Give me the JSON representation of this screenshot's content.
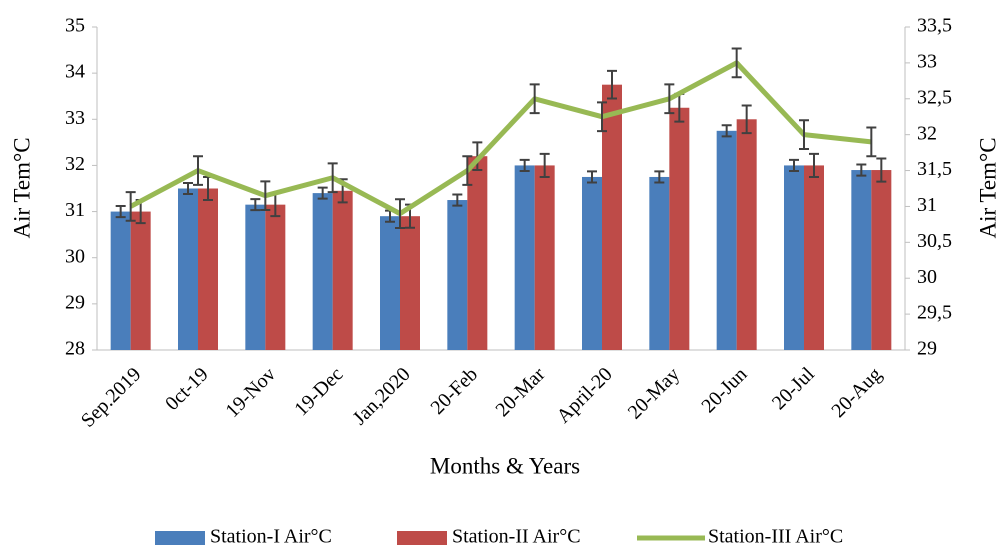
{
  "chart_data": {
    "type": "bar",
    "x_label": "Months & Years",
    "y_label": "Air Tem°C",
    "y2_label": "Air Tem°C",
    "categories": [
      "Sep.2019",
      "0ct-19",
      "19-Nov",
      "19-Dec",
      "Jan,2020",
      "20-Feb",
      "20-Mar",
      "April-20",
      "20-May",
      "20-Jun",
      "20-Jul",
      "20-Aug"
    ],
    "series": [
      {
        "name": "Station-I Air°C",
        "color": "#4a7ebb",
        "type": "bar",
        "values": [
          31.0,
          31.5,
          31.15,
          31.4,
          30.9,
          31.25,
          32.0,
          31.75,
          31.75,
          32.75,
          32.0,
          31.9
        ],
        "errors": [
          0.12,
          0.12,
          0.12,
          0.12,
          0.12,
          0.12,
          0.12,
          0.12,
          0.12,
          0.12,
          0.12,
          0.12
        ]
      },
      {
        "name": "Station-II Air°C",
        "color": "#be4b48",
        "type": "bar",
        "values": [
          31.0,
          31.5,
          31.15,
          31.45,
          30.9,
          32.2,
          32.0,
          33.75,
          33.25,
          33.0,
          32.0,
          31.9
        ],
        "errors": [
          0.25,
          0.25,
          0.25,
          0.25,
          0.25,
          0.3,
          0.25,
          0.3,
          0.3,
          0.3,
          0.25,
          0.25
        ]
      },
      {
        "name": "Station-III Air°C",
        "color": "#98b954",
        "type": "line",
        "axis": "y2",
        "values": [
          31.0,
          31.5,
          31.15,
          31.4,
          30.9,
          31.5,
          32.5,
          32.25,
          32.5,
          33.0,
          32.0,
          31.9
        ],
        "errors": [
          0.2,
          0.2,
          0.2,
          0.2,
          0.2,
          0.2,
          0.2,
          0.2,
          0.2,
          0.2,
          0.2,
          0.2
        ]
      }
    ],
    "ylim": [
      28,
      35
    ],
    "yticks": [
      28,
      29,
      30,
      31,
      32,
      33,
      34,
      35
    ],
    "y2lim": [
      29,
      33.5
    ],
    "y2ticks": [
      29,
      {
        "value": 29.5,
        "label": "29,5"
      },
      30,
      {
        "value": 30.5,
        "label": "30,5"
      },
      31,
      {
        "value": 31.5,
        "label": "31,5"
      },
      32,
      {
        "value": 32.5,
        "label": "32,5"
      },
      33,
      {
        "value": 33.5,
        "label": "33,5"
      }
    ],
    "grid": false,
    "legend": "bottom"
  }
}
